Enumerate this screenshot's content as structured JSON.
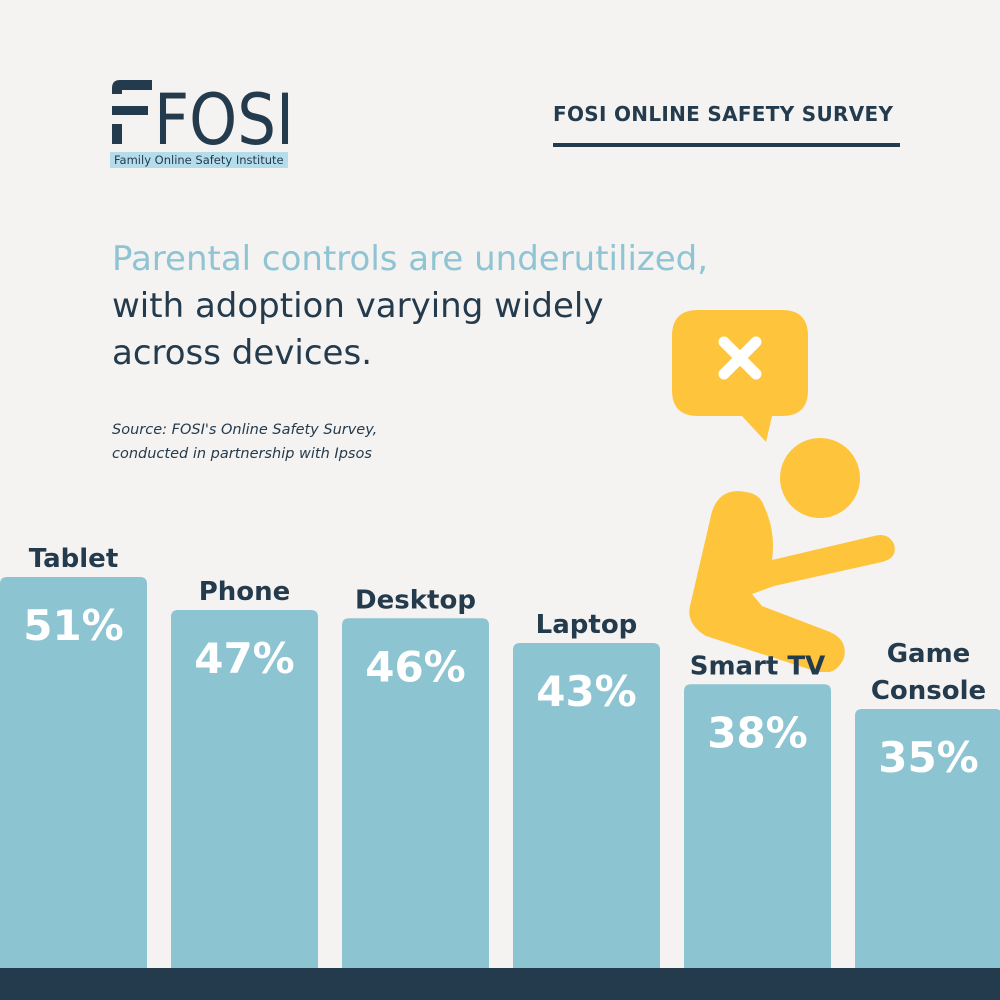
{
  "logo": {
    "mark": "FOSI",
    "subtitle": "Family Online Safety Institute"
  },
  "header": {
    "title": "FOSI ONLINE SAFETY SURVEY"
  },
  "headline": {
    "line1": "Parental controls are underutilized,",
    "line2": "with adoption varying widely",
    "line3": "across devices."
  },
  "source": {
    "line1": "Source: FOSI's Online Safety Survey,",
    "line2": "conducted in partnership with Ipsos"
  },
  "colors": {
    "bar": "#8cc4d1",
    "dark": "#243b4d",
    "accent": "#8ec4d3",
    "illustration": "#fdc43c",
    "background": "#f5f3f1"
  },
  "illustration": {
    "icons": [
      "speech-bubble-x-icon",
      "sad-person-icon"
    ]
  },
  "chart_data": {
    "type": "bar",
    "categories": [
      "Tablet",
      "Phone",
      "Desktop",
      "Laptop",
      "Smart TV",
      "Game Console"
    ],
    "values": [
      51,
      47,
      46,
      43,
      38,
      35
    ],
    "value_labels": [
      "51%",
      "47%",
      "46%",
      "43%",
      "38%",
      "35%"
    ],
    "category_label_lines": [
      [
        "Tablet"
      ],
      [
        "Phone"
      ],
      [
        "Desktop"
      ],
      [
        "Laptop"
      ],
      [
        "Smart TV"
      ],
      [
        "Game",
        "Console"
      ]
    ],
    "unit": "%",
    "ylim": [
      0,
      70
    ],
    "grid": false,
    "legend": "none"
  }
}
